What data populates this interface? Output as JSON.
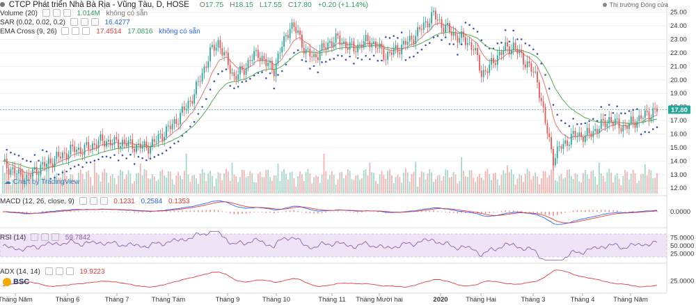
{
  "header": {
    "title": "CTCP Phát triển Nhà Bà Rịa - Vũng Tàu, D, HOSE",
    "open_label": "O",
    "open": "17.75",
    "high_label": "H",
    "high": "18.15",
    "low_label": "L",
    "low": "17.55",
    "close_label": "C",
    "close": "17.80",
    "change": "+0.20 (+1.14%)"
  },
  "market_status": "Thị trường Đóng cửa",
  "indicators": {
    "volume": {
      "label": "Volume (20)",
      "v1": "1.014M",
      "v2": "không có sẵn"
    },
    "sar": {
      "label": "SAR (0.02, 0.02, 0.2)",
      "v1": "16.4277"
    },
    "ema": {
      "label": "EMA Cross (9, 26)",
      "v1": "17.4514",
      "v2": "17.0816",
      "v3": "không có sẵn"
    },
    "macd": {
      "label": "MACD (12, 26, close, 9)",
      "v1": "0.1231",
      "v2": "0.2584",
      "v3": "0.1353"
    },
    "rsi": {
      "label": "RSI (14)",
      "v1": "59.7842"
    },
    "adx": {
      "label": "ADX (14, 14)",
      "v1": "19.9223"
    }
  },
  "watermark": "Chart by TradingView",
  "broker_logo": "BSC",
  "last_price_label": "17.80",
  "colors": {
    "up": "#26a69a",
    "down": "#ef5350",
    "ema_fast": "#e57373",
    "ema_slow": "#4caf50",
    "sar": "#3f51b5",
    "macd": "#2962ff",
    "signal": "#e53935",
    "rsi": "#8e5bb5",
    "adx": "#e53935"
  },
  "chart_data": {
    "type": "candlestick",
    "x_ticks": [
      "Tháng Năm",
      "Tháng 6",
      "Tháng 7",
      "Tháng Tám",
      "Tháng 9",
      "Tháng 10",
      "Tháng 11",
      "Tháng Mười hai",
      "2020",
      "Tháng Hai",
      "Tháng 3",
      "Tháng 4",
      "Tháng Năm"
    ],
    "price_axis": {
      "ticks": [
        12,
        13,
        14,
        15,
        16,
        17,
        18,
        19,
        20,
        21,
        22,
        23,
        24,
        25
      ],
      "range": [
        11.6,
        25.6
      ]
    },
    "macd_axis": {
      "ticks": [
        "0.0000"
      ]
    },
    "rsi_axis": {
      "ticks": [
        "75.0000",
        "50.0000",
        "25.0000"
      ],
      "band": [
        30,
        70
      ]
    },
    "adx_axis": {
      "ticks": [
        "25.0000"
      ]
    },
    "close_series": [
      13.8,
      13.4,
      13.0,
      12.7,
      13.3,
      13.6,
      14.0,
      14.3,
      14.6,
      14.9,
      14.8,
      15.1,
      15.4,
      15.5,
      15.3,
      15.4,
      15.2,
      15.1,
      15.0,
      15.4,
      16.0,
      16.5,
      17.2,
      18.0,
      19.0,
      20.5,
      22.0,
      22.8,
      21.5,
      20.2,
      20.6,
      21.5,
      22.0,
      21.2,
      20.8,
      22.5,
      24.0,
      23.5,
      22.0,
      21.7,
      22.2,
      22.8,
      23.0,
      22.6,
      22.3,
      22.7,
      22.9,
      22.4,
      21.8,
      22.1,
      22.5,
      22.9,
      23.5,
      24.2,
      24.8,
      24.1,
      23.6,
      23.2,
      22.9,
      22.4,
      20.5,
      20.9,
      21.8,
      22.3,
      22.5,
      21.7,
      21.0,
      20.0,
      16.8,
      14.2,
      15.1,
      15.6,
      16.0,
      15.8,
      16.2,
      16.6,
      17.1,
      16.7,
      16.5,
      16.9,
      17.2,
      17.5,
      17.8
    ],
    "volume_note": "per-bar volumes shown as histogram",
    "last_close": 17.8
  }
}
